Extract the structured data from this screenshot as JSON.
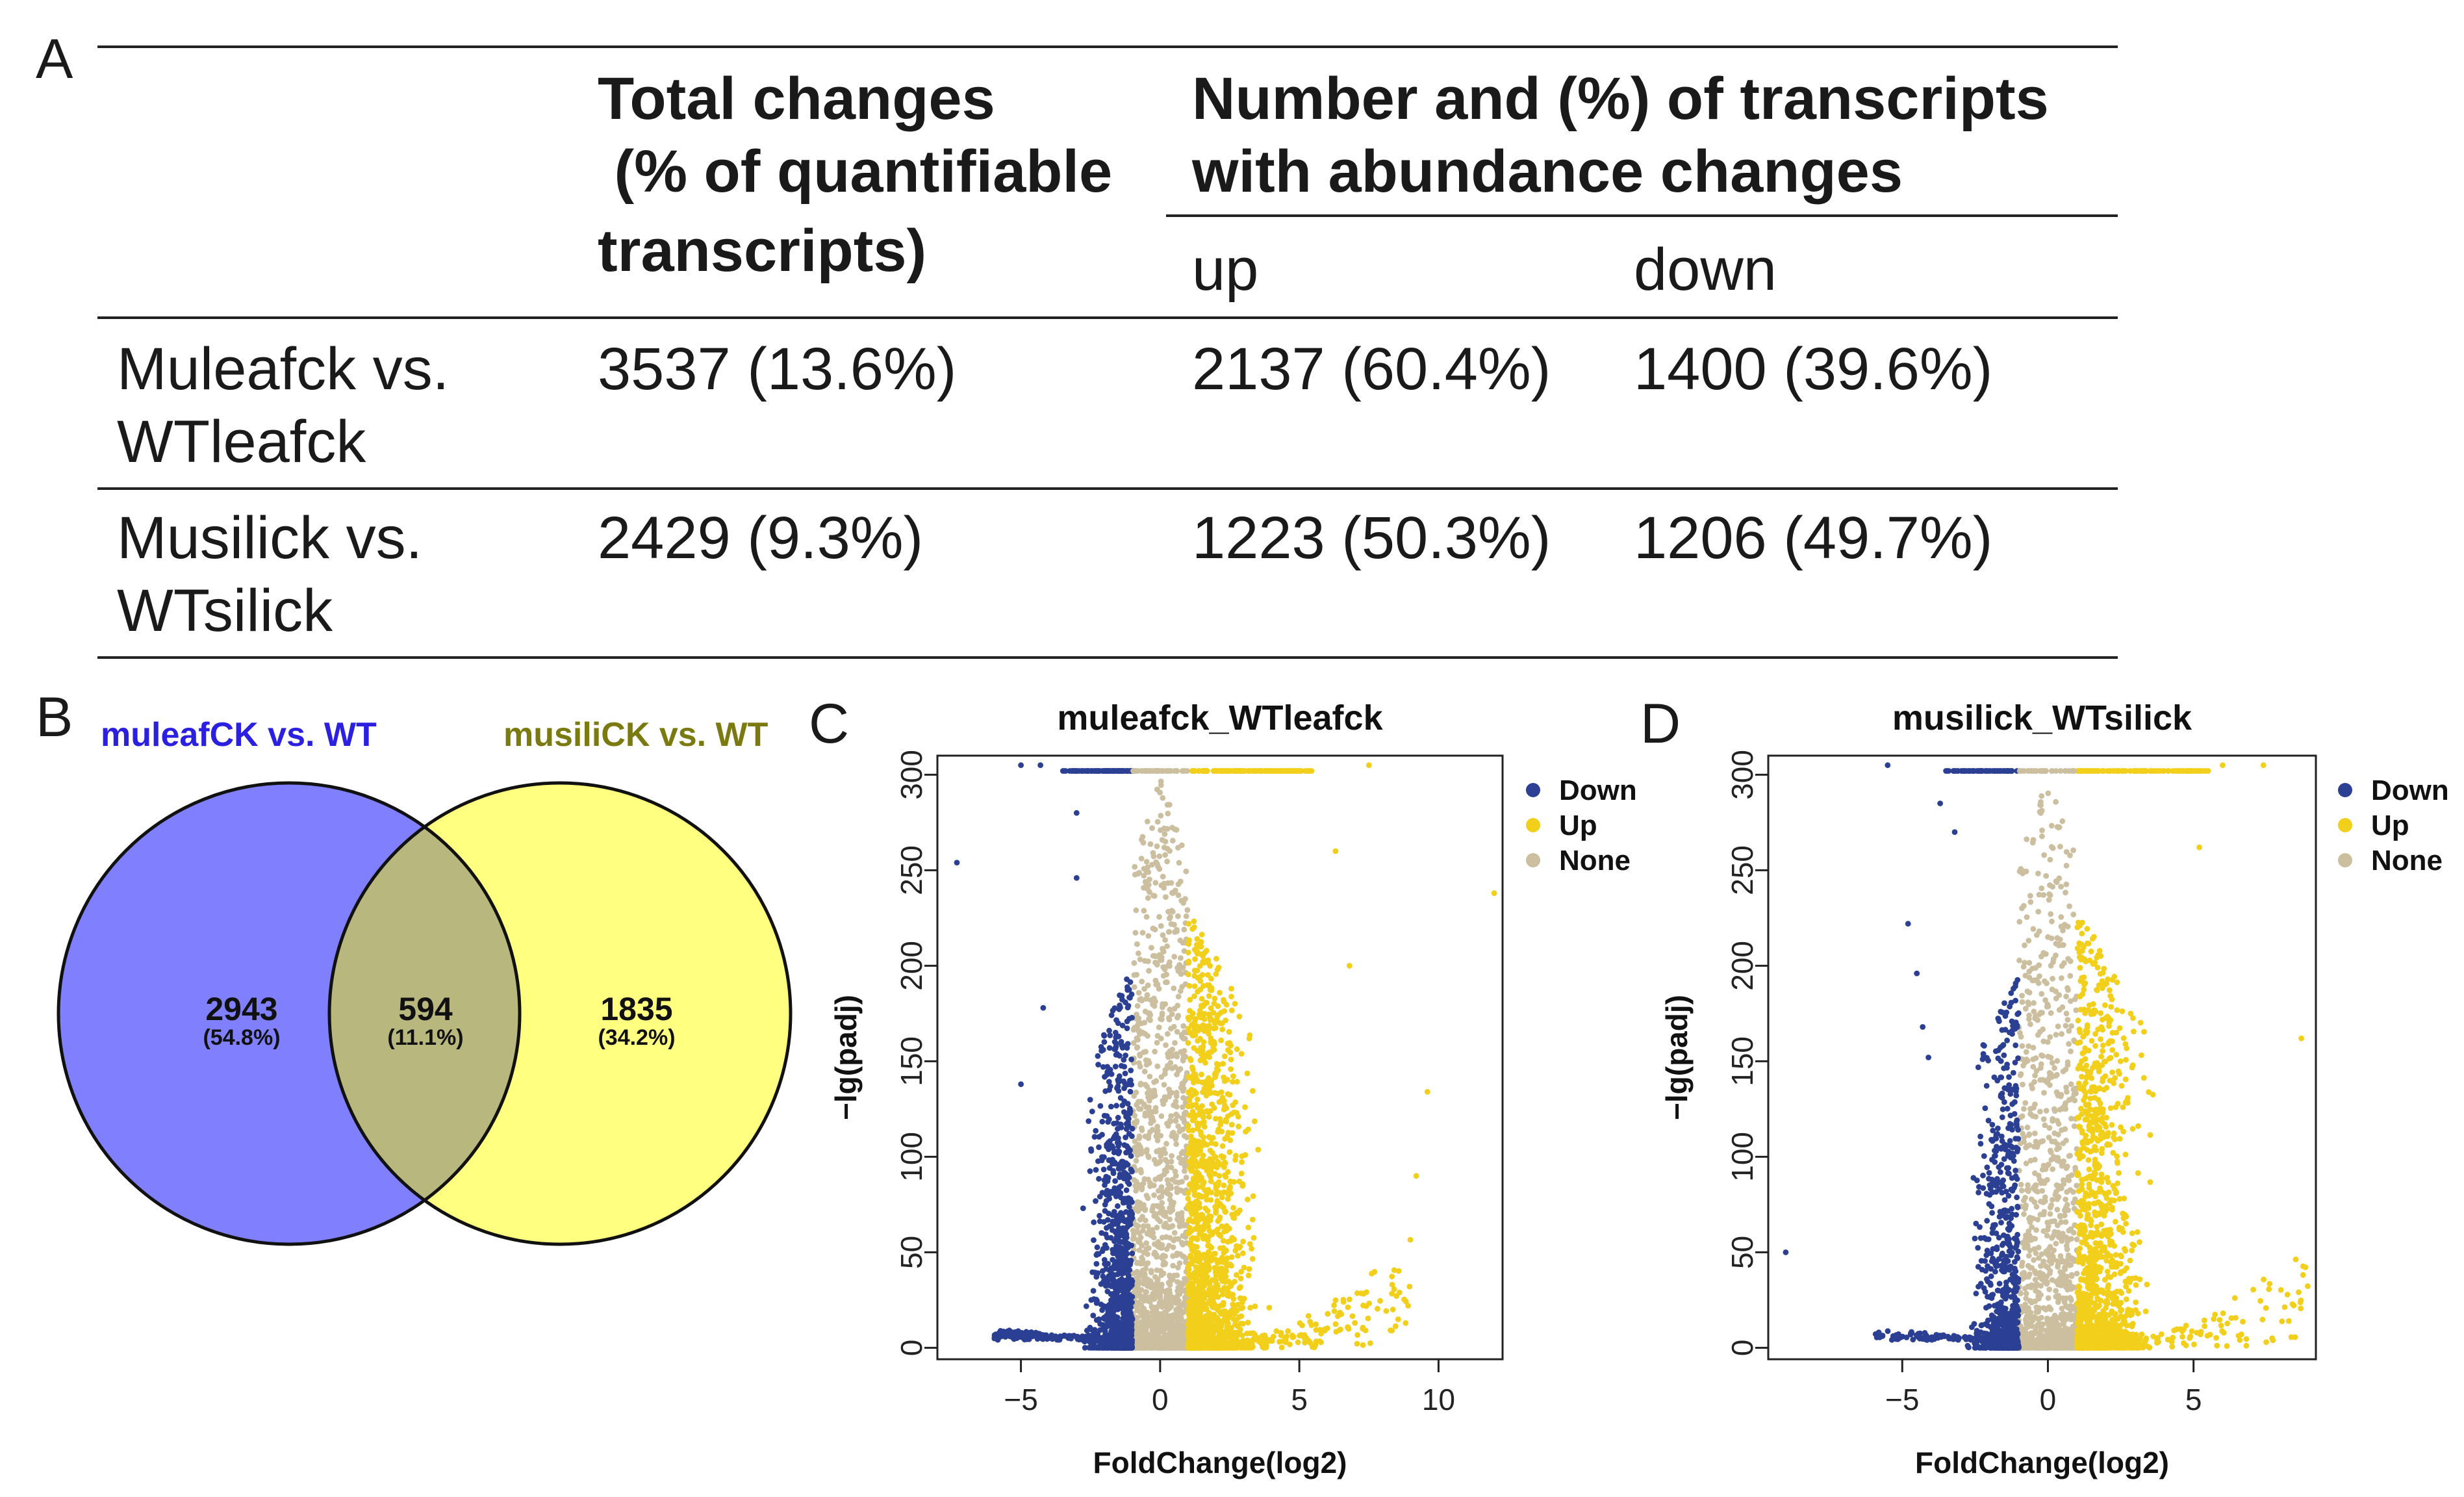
{
  "panel_labels": {
    "a": "A",
    "b": "B",
    "c": "C",
    "d": "D"
  },
  "table": {
    "header_total": [
      "Total changes",
      " (% of quantifiable",
      "transcripts)"
    ],
    "header_number": [
      "Number and (%) of transcripts",
      "with abundance changes"
    ],
    "col_up": "up",
    "col_down": "down",
    "rows": [
      {
        "label": [
          "Muleafck vs.",
          "WTleafck"
        ],
        "total": "3537 (13.6%)",
        "up": "2137 (60.4%)",
        "down": "1400 (39.6%)"
      },
      {
        "label": [
          "Musilick vs.",
          "WTsilick"
        ],
        "total": "2429 (9.3%)",
        "up": "1223 (50.3%)",
        "down": "1206 (49.7%)"
      }
    ]
  },
  "venn": {
    "left_title": "muleafCK vs. WT",
    "right_title": "musiliCK vs. WT",
    "left_title_color": "#2b20e0",
    "right_title_color": "#7a7a10",
    "left_color": "#8080ff",
    "right_color": "#ffff80",
    "overlap_color": "#b7b77e",
    "left_only": {
      "count": "2943",
      "pct": "(54.8%)"
    },
    "overlap": {
      "count": "594",
      "pct": "(11.1%)"
    },
    "right_only": {
      "count": "1835",
      "pct": "(34.2%)"
    }
  },
  "chart_data": [
    {
      "type": "scatter",
      "panel": "C",
      "title": "muleafck_WTleafck",
      "xlabel": "FoldChange(log2)",
      "ylabel": "-lg(padj)",
      "xlim": [
        -8,
        12.3
      ],
      "ylim": [
        -6,
        310
      ],
      "xticks": [
        -5,
        0,
        5,
        10
      ],
      "yticks": [
        0,
        50,
        100,
        150,
        200,
        250,
        300
      ],
      "legend": "right",
      "series": [
        {
          "name": "Down",
          "color": "#2b3f93"
        },
        {
          "name": "Up",
          "color": "#f2cf1a"
        },
        {
          "name": "None",
          "color": "#cbbf9f"
        }
      ],
      "notable_points": [
        {
          "x": -7.3,
          "y": 254,
          "series": "Down"
        },
        {
          "x": -5.0,
          "y": 138,
          "series": "Down"
        },
        {
          "x": -4.2,
          "y": 178,
          "series": "Down"
        },
        {
          "x": -3.0,
          "y": 280,
          "series": "Down"
        },
        {
          "x": -3.0,
          "y": 246,
          "series": "Down"
        },
        {
          "x": -5.0,
          "y": 305,
          "series": "Down"
        },
        {
          "x": -4.3,
          "y": 305,
          "series": "Down"
        },
        {
          "x": 12.0,
          "y": 238,
          "series": "Up"
        },
        {
          "x": 9.6,
          "y": 134,
          "series": "Up"
        },
        {
          "x": 9.2,
          "y": 90,
          "series": "Up"
        },
        {
          "x": 7.5,
          "y": 305,
          "series": "Up"
        },
        {
          "x": 6.3,
          "y": 260,
          "series": "Up"
        },
        {
          "x": 6.8,
          "y": 200,
          "series": "Up"
        }
      ]
    },
    {
      "type": "scatter",
      "panel": "D",
      "title": "musilick_WTsilick",
      "xlabel": "FoldChange(log2)",
      "ylabel": "-lg(padj)",
      "xlim": [
        -9.6,
        9.2
      ],
      "ylim": [
        -6,
        310
      ],
      "xticks": [
        -5,
        0,
        5
      ],
      "yticks": [
        0,
        50,
        100,
        150,
        200,
        250,
        300
      ],
      "legend": "right",
      "series": [
        {
          "name": "Down",
          "color": "#2b3f93"
        },
        {
          "name": "Up",
          "color": "#f2cf1a"
        },
        {
          "name": "None",
          "color": "#cbbf9f"
        }
      ],
      "notable_points": [
        {
          "x": -9.0,
          "y": 50,
          "series": "Down"
        },
        {
          "x": -5.5,
          "y": 305,
          "series": "Down"
        },
        {
          "x": -4.8,
          "y": 222,
          "series": "Down"
        },
        {
          "x": -4.5,
          "y": 196,
          "series": "Down"
        },
        {
          "x": -4.1,
          "y": 152,
          "series": "Down"
        },
        {
          "x": -4.3,
          "y": 168,
          "series": "Down"
        },
        {
          "x": -3.7,
          "y": 285,
          "series": "Down"
        },
        {
          "x": -3.2,
          "y": 270,
          "series": "Down"
        },
        {
          "x": 8.7,
          "y": 162,
          "series": "Up"
        },
        {
          "x": 6.0,
          "y": 305,
          "series": "Up"
        },
        {
          "x": 5.2,
          "y": 262,
          "series": "Up"
        },
        {
          "x": 7.4,
          "y": 305,
          "series": "Up"
        }
      ]
    }
  ]
}
